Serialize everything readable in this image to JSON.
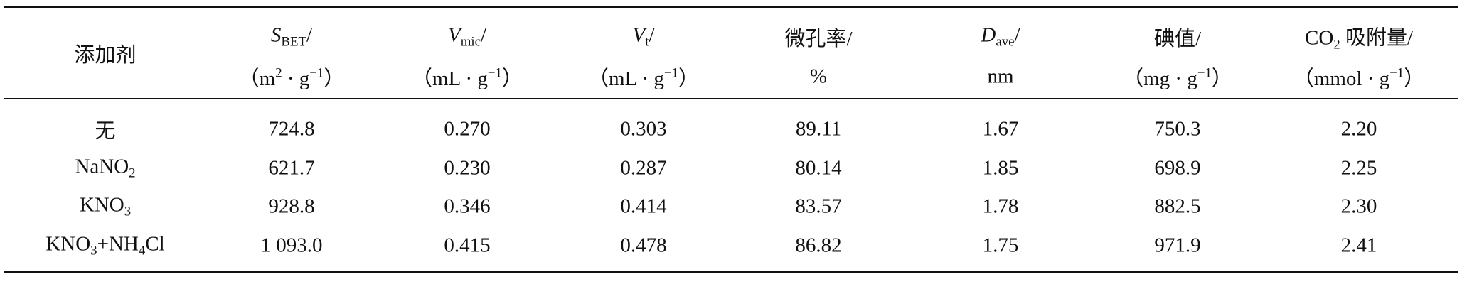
{
  "table": {
    "header": [
      {
        "lines": [
          [
            {
              "text": "添加剂"
            }
          ]
        ]
      },
      {
        "lines": [
          [
            {
              "text": "S",
              "style": "italic"
            },
            {
              "text": "BET",
              "style": "sub"
            },
            {
              "text": "/"
            }
          ],
          [
            {
              "text": "（m"
            },
            {
              "text": "2",
              "style": "sup"
            },
            {
              "text": " · g"
            },
            {
              "text": "−1",
              "style": "sup"
            },
            {
              "text": "）"
            }
          ]
        ]
      },
      {
        "lines": [
          [
            {
              "text": "V",
              "style": "italic"
            },
            {
              "text": "mic",
              "style": "sub"
            },
            {
              "text": "/"
            }
          ],
          [
            {
              "text": "（mL · g"
            },
            {
              "text": "−1",
              "style": "sup"
            },
            {
              "text": "）"
            }
          ]
        ]
      },
      {
        "lines": [
          [
            {
              "text": "V",
              "style": "italic"
            },
            {
              "text": "t",
              "style": "sub"
            },
            {
              "text": "/"
            }
          ],
          [
            {
              "text": "（mL · g"
            },
            {
              "text": "−1",
              "style": "sup"
            },
            {
              "text": "）"
            }
          ]
        ]
      },
      {
        "lines": [
          [
            {
              "text": "微孔率/"
            }
          ],
          [
            {
              "text": "%"
            }
          ]
        ]
      },
      {
        "lines": [
          [
            {
              "text": "D",
              "style": "italic"
            },
            {
              "text": "ave",
              "style": "sub"
            },
            {
              "text": "/"
            }
          ],
          [
            {
              "text": "nm"
            }
          ]
        ]
      },
      {
        "lines": [
          [
            {
              "text": "碘值/"
            }
          ],
          [
            {
              "text": "（mg · g"
            },
            {
              "text": "−1",
              "style": "sup"
            },
            {
              "text": "）"
            }
          ]
        ]
      },
      {
        "lines": [
          [
            {
              "text": "CO"
            },
            {
              "text": "2",
              "style": "sub"
            },
            {
              "text": " 吸附量/"
            }
          ],
          [
            {
              "text": "（mmol · g"
            },
            {
              "text": "−1",
              "style": "sup"
            },
            {
              "text": "）"
            }
          ]
        ]
      }
    ],
    "rows": [
      [
        "无",
        "724.8",
        "0.270",
        "0.303",
        "89.11",
        "1.67",
        "750.3",
        "2.20"
      ],
      [
        [
          {
            "text": "NaNO"
          },
          {
            "text": "2",
            "style": "sub"
          }
        ],
        "621.7",
        "0.230",
        "0.287",
        "80.14",
        "1.85",
        "698.9",
        "2.25"
      ],
      [
        [
          {
            "text": "KNO"
          },
          {
            "text": "3",
            "style": "sub"
          }
        ],
        "928.8",
        "0.346",
        "0.414",
        "83.57",
        "1.78",
        "882.5",
        "2.30"
      ],
      [
        [
          {
            "text": "KNO"
          },
          {
            "text": "3",
            "style": "sub"
          },
          {
            "text": "+NH"
          },
          {
            "text": "4",
            "style": "sub"
          },
          {
            "text": "Cl"
          }
        ],
        "1 093.0",
        "0.415",
        "0.478",
        "86.82",
        "1.75",
        "971.9",
        "2.41"
      ]
    ]
  }
}
